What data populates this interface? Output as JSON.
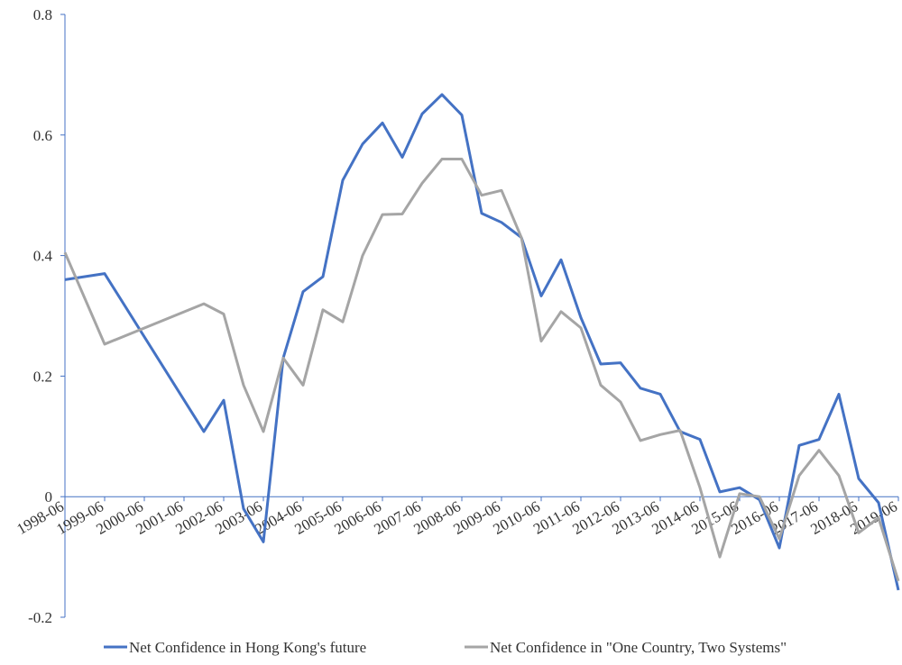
{
  "chart_data": {
    "type": "line",
    "x": [
      "1998-06",
      "1999-06",
      "2001-12",
      "2002-06",
      "2002-12",
      "2003-06",
      "2003-12",
      "2004-06",
      "2004-12",
      "2005-06",
      "2005-12",
      "2006-06",
      "2006-12",
      "2007-06",
      "2007-12",
      "2008-06",
      "2008-12",
      "2009-06",
      "2009-12",
      "2010-06",
      "2010-12",
      "2011-06",
      "2011-12",
      "2012-06",
      "2012-12",
      "2013-06",
      "2013-12",
      "2014-06",
      "2014-12",
      "2015-06",
      "2015-12",
      "2016-06",
      "2016-12",
      "2017-06",
      "2017-12",
      "2018-06",
      "2018-12",
      "2019-06"
    ],
    "series": [
      {
        "name": "Net Confidence in Hong Kong's future",
        "color": "#4472c4",
        "values": [
          0.36,
          0.37,
          0.108,
          0.16,
          -0.02,
          -0.075,
          0.23,
          0.34,
          0.365,
          0.525,
          0.585,
          0.62,
          0.563,
          0.635,
          0.667,
          0.633,
          0.47,
          0.455,
          0.43,
          0.333,
          0.393,
          0.297,
          0.22,
          0.222,
          0.18,
          0.17,
          0.108,
          0.095,
          0.008,
          0.015,
          -0.005,
          -0.085,
          0.085,
          0.095,
          0.17,
          0.03,
          -0.01,
          -0.155
        ]
      },
      {
        "name": "Net Confidence in \"One Country, Two Systems\"",
        "color": "#a5a5a5",
        "values": [
          0.405,
          0.253,
          0.32,
          0.303,
          0.185,
          0.108,
          0.23,
          0.185,
          0.31,
          0.29,
          0.4,
          0.468,
          0.469,
          0.52,
          0.56,
          0.56,
          0.5,
          0.508,
          0.43,
          0.258,
          0.307,
          0.28,
          0.185,
          0.157,
          0.093,
          0.103,
          0.11,
          0.015,
          -0.1,
          0.005,
          0.0,
          -0.07,
          0.035,
          0.077,
          0.035,
          -0.06,
          -0.035,
          -0.14
        ]
      }
    ],
    "xlim": [
      "1998-06",
      "2019-06"
    ],
    "xticks": [
      "1998-06",
      "1999-06",
      "2000-06",
      "2001-06",
      "2002-06",
      "2003-06",
      "2004-06",
      "2005-06",
      "2006-06",
      "2007-06",
      "2008-06",
      "2009-06",
      "2010-06",
      "2011-06",
      "2012-06",
      "2013-06",
      "2014-06",
      "2015-06",
      "2016-06",
      "2017-06",
      "2018-06",
      "2019-06"
    ],
    "ylim": [
      -0.2,
      0.8
    ],
    "yticks": [
      -0.2,
      0,
      0.2,
      0.4,
      0.6,
      0.8
    ],
    "axis_color": "#4472c4",
    "legend": "bottom"
  }
}
